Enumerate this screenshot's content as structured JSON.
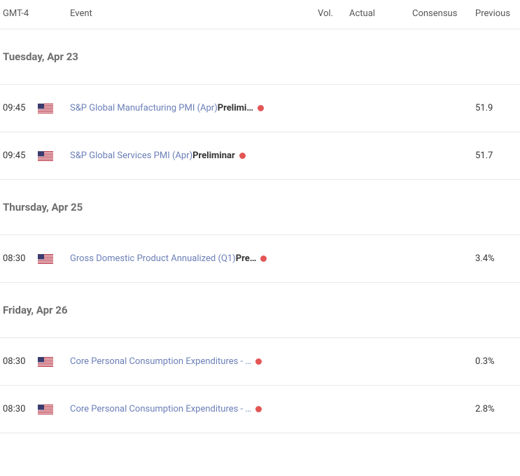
{
  "header": {
    "timezone": "GMT-4",
    "event": "Event",
    "vol": "Vol.",
    "actual": "Actual",
    "consensus": "Consensus",
    "previous": "Previous"
  },
  "colors": {
    "link": "#6b7fb8",
    "impact_dot": "#e35655",
    "border": "#e8e8e8",
    "date_text": "#6d6d6d"
  },
  "groups": [
    {
      "date_label": "Tuesday, Apr 23",
      "events": [
        {
          "time": "09:45",
          "country": "US",
          "title": "S&P Global Manufacturing PMI (Apr)",
          "suffix": "Prelimi…",
          "impact": "high",
          "actual": "",
          "consensus": "",
          "previous": "51.9"
        },
        {
          "time": "09:45",
          "country": "US",
          "title": "S&P Global Services PMI (Apr)",
          "suffix": "Preliminar",
          "impact": "high",
          "actual": "",
          "consensus": "",
          "previous": "51.7"
        }
      ]
    },
    {
      "date_label": "Thursday, Apr 25",
      "events": [
        {
          "time": "08:30",
          "country": "US",
          "title": "Gross Domestic Product Annualized (Q1)",
          "suffix": "Pre…",
          "impact": "high",
          "actual": "",
          "consensus": "",
          "previous": "3.4%"
        }
      ]
    },
    {
      "date_label": "Friday, Apr 26",
      "events": [
        {
          "time": "08:30",
          "country": "US",
          "title": "Core Personal Consumption Expenditures - …",
          "suffix": "",
          "impact": "high",
          "actual": "",
          "consensus": "",
          "previous": "0.3%"
        },
        {
          "time": "08:30",
          "country": "US",
          "title": "Core Personal Consumption Expenditures - …",
          "suffix": "",
          "impact": "high",
          "actual": "",
          "consensus": "",
          "previous": "2.8%"
        }
      ]
    }
  ]
}
